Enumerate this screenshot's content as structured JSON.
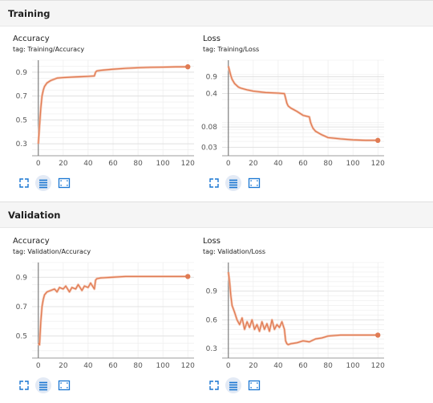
{
  "sections": [
    {
      "title": "Training",
      "charts": [
        {
          "title": "Accuracy",
          "tag": "tag: Training/Accuracy"
        },
        {
          "title": "Loss",
          "tag": "tag: Training/Loss"
        }
      ]
    },
    {
      "title": "Validation",
      "charts": [
        {
          "title": "Accuracy",
          "tag": "tag: Validation/Accuracy"
        },
        {
          "title": "Loss",
          "tag": "tag: Validation/Loss"
        }
      ]
    }
  ],
  "tools": [
    {
      "icon": "expand-icon"
    },
    {
      "icon": "data-table-icon"
    },
    {
      "icon": "fit-domain-icon"
    }
  ],
  "colors": {
    "series": "#e07b53",
    "grid": "#ececec",
    "axis": "#9e9e9e",
    "accent": "#1976d2"
  },
  "chart_data": [
    {
      "type": "line",
      "section": "Training",
      "title": "Accuracy",
      "scale": "linear",
      "xlim": [
        -5,
        125
      ],
      "ylim": [
        0.2,
        1.0
      ],
      "xticks": [
        0,
        20,
        40,
        60,
        80,
        100,
        120
      ],
      "yticks": [
        0.3,
        0.5,
        0.7,
        0.9
      ],
      "ytick_labels": [
        "0.3",
        "0.5",
        "0.7",
        "0.9"
      ],
      "series": [
        {
          "x": [
            0,
            1,
            2,
            3,
            4,
            5,
            7,
            10,
            15,
            20,
            30,
            40,
            45,
            46,
            47,
            50,
            60,
            70,
            80,
            90,
            100,
            110,
            120
          ],
          "y": [
            0.3,
            0.45,
            0.6,
            0.7,
            0.75,
            0.78,
            0.81,
            0.83,
            0.85,
            0.855,
            0.86,
            0.865,
            0.868,
            0.9,
            0.91,
            0.915,
            0.925,
            0.932,
            0.937,
            0.94,
            0.942,
            0.944,
            0.945
          ]
        }
      ]
    },
    {
      "type": "line",
      "section": "Training",
      "title": "Loss",
      "scale": "log",
      "xlim": [
        -5,
        125
      ],
      "ylim": [
        0.02,
        2.0
      ],
      "xticks": [
        0,
        20,
        40,
        60,
        80,
        100,
        120
      ],
      "yticks": [
        0.03,
        0.08,
        0.4,
        0.9
      ],
      "ytick_labels": [
        "0.03",
        "0.08",
        "0.4",
        "0.9"
      ],
      "series": [
        {
          "x": [
            0,
            1,
            2,
            3,
            5,
            8,
            10,
            15,
            20,
            30,
            40,
            45,
            46,
            47,
            48,
            50,
            55,
            60,
            65,
            66,
            67,
            68,
            70,
            75,
            80,
            90,
            100,
            110,
            120
          ],
          "y": [
            1.5,
            1.2,
            0.95,
            0.8,
            0.65,
            0.55,
            0.52,
            0.48,
            0.45,
            0.42,
            0.41,
            0.4,
            0.32,
            0.25,
            0.22,
            0.2,
            0.17,
            0.14,
            0.13,
            0.1,
            0.085,
            0.075,
            0.065,
            0.055,
            0.048,
            0.045,
            0.043,
            0.042,
            0.042
          ]
        }
      ]
    },
    {
      "type": "line",
      "section": "Validation",
      "title": "Accuracy",
      "scale": "linear",
      "xlim": [
        -5,
        125
      ],
      "ylim": [
        0.35,
        1.0
      ],
      "xticks": [
        0,
        20,
        40,
        60,
        80,
        100,
        120
      ],
      "yticks": [
        0.5,
        0.7,
        0.9
      ],
      "ytick_labels": [
        "0.5",
        "0.7",
        "0.9"
      ],
      "series": [
        {
          "x": [
            0,
            1,
            2,
            3,
            4,
            5,
            7,
            10,
            13,
            15,
            17,
            20,
            22,
            25,
            27,
            30,
            32,
            35,
            37,
            40,
            42,
            45,
            46,
            47,
            50,
            60,
            70,
            80,
            90,
            100,
            110,
            120
          ],
          "y": [
            0.45,
            0.44,
            0.6,
            0.7,
            0.75,
            0.78,
            0.8,
            0.81,
            0.82,
            0.8,
            0.83,
            0.82,
            0.84,
            0.8,
            0.83,
            0.82,
            0.85,
            0.81,
            0.84,
            0.83,
            0.86,
            0.82,
            0.88,
            0.89,
            0.895,
            0.9,
            0.905,
            0.905,
            0.905,
            0.905,
            0.905,
            0.905
          ]
        }
      ]
    },
    {
      "type": "line",
      "section": "Validation",
      "title": "Loss",
      "scale": "linear",
      "xlim": [
        -5,
        125
      ],
      "ylim": [
        0.2,
        1.2
      ],
      "xticks": [
        0,
        20,
        40,
        60,
        80,
        100,
        120
      ],
      "yticks": [
        0.3,
        0.6,
        0.9
      ],
      "ytick_labels": [
        "0.3",
        "0.6",
        "0.9"
      ],
      "series": [
        {
          "x": [
            0,
            1,
            2,
            3,
            5,
            7,
            9,
            11,
            13,
            15,
            17,
            19,
            21,
            23,
            25,
            27,
            29,
            31,
            33,
            35,
            37,
            39,
            41,
            43,
            45,
            46,
            47,
            48,
            50,
            55,
            60,
            65,
            70,
            75,
            80,
            90,
            100,
            110,
            120
          ],
          "y": [
            1.1,
            1.0,
            0.85,
            0.75,
            0.68,
            0.6,
            0.55,
            0.62,
            0.5,
            0.58,
            0.52,
            0.6,
            0.5,
            0.55,
            0.48,
            0.58,
            0.5,
            0.56,
            0.48,
            0.6,
            0.5,
            0.55,
            0.52,
            0.58,
            0.5,
            0.38,
            0.35,
            0.34,
            0.35,
            0.36,
            0.38,
            0.37,
            0.4,
            0.41,
            0.43,
            0.44,
            0.44,
            0.44,
            0.44
          ]
        }
      ]
    }
  ]
}
